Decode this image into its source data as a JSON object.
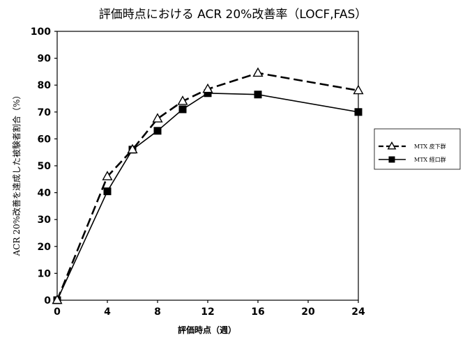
{
  "chart_data": {
    "type": "line",
    "title": "評価時点における ACR 20%改善率（LOCF,FAS）",
    "xlabel": "評価時点（週）",
    "ylabel": "ACR 20%改善を達成した被験者割合（%）",
    "xlim": [
      0,
      24
    ],
    "ylim": [
      0,
      100
    ],
    "x_ticks": [
      "0",
      "4",
      "8",
      "12",
      "16",
      "20",
      "24"
    ],
    "y_ticks": [
      "0",
      "10",
      "20",
      "30",
      "40",
      "50",
      "60",
      "70",
      "80",
      "90",
      "100"
    ],
    "grid": false,
    "legend_position": "right",
    "series": [
      {
        "name": "MTX 皮下群",
        "marker": "open-triangle",
        "line_style": "dashed",
        "color": "#000000",
        "x": [
          0,
          4,
          6,
          8,
          10,
          12,
          16,
          24
        ],
        "values": [
          0,
          46,
          56,
          67.5,
          74,
          78.5,
          84.5,
          78
        ]
      },
      {
        "name": "MTX 経口群",
        "marker": "filled-square",
        "line_style": "solid",
        "color": "#000000",
        "x": [
          0,
          4,
          6,
          8,
          10,
          12,
          16,
          24
        ],
        "values": [
          0,
          40.5,
          56,
          63,
          71,
          77,
          76.5,
          70
        ]
      }
    ]
  }
}
